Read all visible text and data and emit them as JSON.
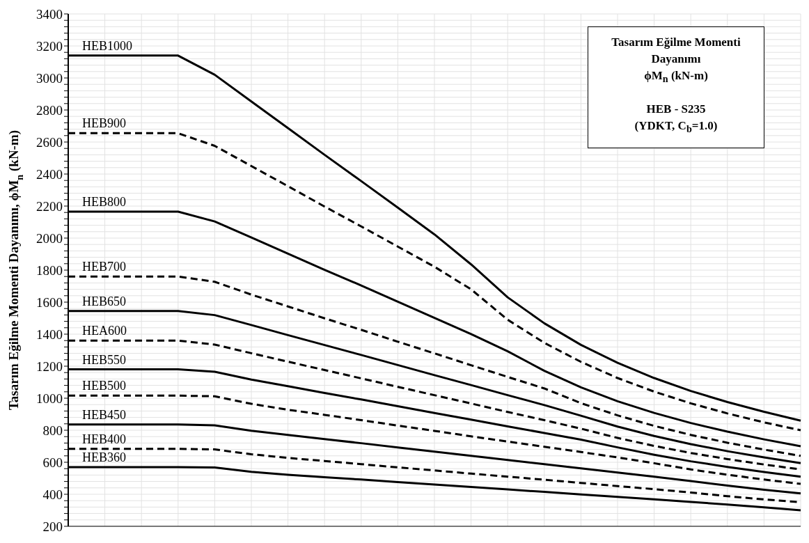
{
  "chart_data": {
    "type": "line",
    "ylabel": "Tasarım Eğilme Momenti Dayanımı, ϕM$_{n}$ (kN-m)",
    "annotations": [
      "Tasarım Eğilme Momenti Dayanımı",
      "ϕM$_{n}$ (kN-m)",
      "HEB - S235",
      "(YDKT, C$_{b}$=1.0)"
    ],
    "categories": [
      null,
      null,
      null,
      null,
      null,
      null,
      null,
      null,
      null,
      null,
      null,
      null,
      null,
      null,
      null,
      null,
      null,
      null,
      null,
      null,
      null
    ],
    "ylim": [
      200,
      3400
    ],
    "yticks": [
      200,
      {
        "value": 240,
        "label": null
      },
      {
        "value": 280,
        "label": null
      },
      {
        "value": 320,
        "label": null
      },
      {
        "value": 360,
        "label": null
      },
      400,
      {
        "value": 440,
        "label": null
      },
      {
        "value": 480,
        "label": null
      },
      {
        "value": 520,
        "label": null
      },
      {
        "value": 560,
        "label": null
      },
      600,
      {
        "value": 640,
        "label": null
      },
      {
        "value": 680,
        "label": null
      },
      {
        "value": 720,
        "label": null
      },
      {
        "value": 760,
        "label": null
      },
      800,
      {
        "value": 840,
        "label": null
      },
      {
        "value": 880,
        "label": null
      },
      {
        "value": 920,
        "label": null
      },
      {
        "value": 960,
        "label": null
      },
      1000,
      {
        "value": 1040,
        "label": null
      },
      {
        "value": 1080,
        "label": null
      },
      {
        "value": 1120,
        "label": null
      },
      {
        "value": 1160,
        "label": null
      },
      1200,
      {
        "value": 1240,
        "label": null
      },
      {
        "value": 1280,
        "label": null
      },
      {
        "value": 1320,
        "label": null
      },
      {
        "value": 1360,
        "label": null
      },
      1400,
      {
        "value": 1440,
        "label": null
      },
      {
        "value": 1480,
        "label": null
      },
      {
        "value": 1520,
        "label": null
      },
      {
        "value": 1560,
        "label": null
      },
      1600,
      {
        "value": 1640,
        "label": null
      },
      {
        "value": 1680,
        "label": null
      },
      {
        "value": 1720,
        "label": null
      },
      {
        "value": 1760,
        "label": null
      },
      1800,
      {
        "value": 1840,
        "label": null
      },
      {
        "value": 1880,
        "label": null
      },
      {
        "value": 1920,
        "label": null
      },
      {
        "value": 1960,
        "label": null
      },
      2000,
      {
        "value": 2040,
        "label": null
      },
      {
        "value": 2080,
        "label": null
      },
      {
        "value": 2120,
        "label": null
      },
      {
        "value": 2160,
        "label": null
      },
      2200,
      {
        "value": 2240,
        "label": null
      },
      {
        "value": 2280,
        "label": null
      },
      {
        "value": 2320,
        "label": null
      },
      {
        "value": 2360,
        "label": null
      },
      2400,
      {
        "value": 2440,
        "label": null
      },
      {
        "value": 2480,
        "label": null
      },
      {
        "value": 2520,
        "label": null
      },
      {
        "value": 2560,
        "label": null
      },
      2600,
      {
        "value": 2640,
        "label": null
      },
      {
        "value": 2680,
        "label": null
      },
      {
        "value": 2720,
        "label": null
      },
      {
        "value": 2760,
        "label": null
      },
      2800,
      {
        "value": 2840,
        "label": null
      },
      {
        "value": 2880,
        "label": null
      },
      {
        "value": 2920,
        "label": null
      },
      {
        "value": 2960,
        "label": null
      },
      3000,
      {
        "value": 3040,
        "label": null
      },
      {
        "value": 3080,
        "label": null
      },
      {
        "value": 3120,
        "label": null
      },
      {
        "value": 3160,
        "label": null
      },
      3200,
      {
        "value": 3240,
        "label": null
      },
      {
        "value": 3280,
        "label": null
      },
      {
        "value": 3320,
        "label": null
      },
      {
        "value": 3360,
        "label": null
      },
      3400
    ],
    "grid": true,
    "tick_labels": "y",
    "marker": "none",
    "series": [
      {
        "name": "HEB1000",
        "color": "#000000",
        "line_style": "solid",
        "values": [
          3140,
          3140,
          3140,
          3140,
          3020,
          2853,
          2687,
          2520,
          2356,
          2190,
          2023,
          1836,
          1630,
          1468,
          1333,
          1221,
          1126,
          1045,
          976,
          915,
          860
        ]
      },
      {
        "name": "HEB900",
        "color": "#000000",
        "line_style": "dashed",
        "values": [
          2655,
          2655,
          2655,
          2655,
          2576,
          2450,
          2324,
          2197,
          2073,
          1947,
          1821,
          1680,
          1490,
          1346,
          1227,
          1126,
          1041,
          968,
          905,
          849,
          800
        ]
      },
      {
        "name": "HEB800",
        "color": "#000000",
        "line_style": "solid",
        "values": [
          2165,
          2165,
          2165,
          2165,
          2104,
          2004,
          1903,
          1802,
          1704,
          1603,
          1502,
          1401,
          1293,
          1171,
          1068,
          981,
          908,
          845,
          791,
          743,
          700
        ]
      },
      {
        "name": "HEB700",
        "color": "#000000",
        "line_style": "dashed",
        "values": [
          1760,
          1760,
          1760,
          1760,
          1727,
          1647,
          1573,
          1499,
          1427,
          1353,
          1280,
          1206,
          1133,
          1061,
          969,
          893,
          827,
          771,
          722,
          679,
          640
        ]
      },
      {
        "name": "HEB650",
        "color": "#000000",
        "line_style": "solid",
        "values": [
          1545,
          1545,
          1545,
          1545,
          1519,
          1457,
          1394,
          1332,
          1270,
          1207,
          1144,
          1082,
          1019,
          957,
          891,
          823,
          764,
          713,
          669,
          630,
          595
        ]
      },
      {
        "name": "HEA600",
        "color": "#000000",
        "line_style": "dashed",
        "values": [
          1360,
          1360,
          1360,
          1360,
          1335,
          1281,
          1228,
          1176,
          1124,
          1071,
          1019,
          967,
          914,
          863,
          810,
          752,
          702,
          658,
          620,
          586,
          555
        ]
      },
      {
        "name": "HEB550",
        "color": "#000000",
        "line_style": "solid",
        "values": [
          1180,
          1180,
          1180,
          1180,
          1165,
          1116,
          1075,
          1033,
          992,
          950,
          908,
          866,
          824,
          783,
          741,
          693,
          647,
          606,
          571,
          539,
          510
        ]
      },
      {
        "name": "HEB500",
        "color": "#000000",
        "line_style": "dashed",
        "values": [
          1016,
          1016,
          1016,
          1016,
          1012,
          965,
          928,
          896,
          863,
          829,
          796,
          762,
          729,
          697,
          664,
          630,
          594,
          555,
          522,
          492,
          465
        ]
      },
      {
        "name": "HEB450",
        "color": "#000000",
        "line_style": "solid",
        "values": [
          836,
          836,
          836,
          836,
          830,
          797,
          771,
          745,
          719,
          692,
          666,
          640,
          614,
          588,
          562,
          536,
          510,
          483,
          454,
          428,
          405
        ]
      },
      {
        "name": "HEB400",
        "color": "#000000",
        "line_style": "dashed",
        "values": [
          684,
          684,
          684,
          684,
          680,
          650,
          627,
          608,
          588,
          568,
          549,
          529,
          510,
          491,
          471,
          451,
          432,
          411,
          388,
          368,
          350
        ]
      },
      {
        "name": "HEB360",
        "color": "#000000",
        "line_style": "solid",
        "values": [
          570,
          570,
          570,
          570,
          567,
          540,
          522,
          507,
          492,
          476,
          461,
          446,
          430,
          415,
          399,
          384,
          368,
          352,
          336,
          318,
          300
        ]
      }
    ]
  }
}
